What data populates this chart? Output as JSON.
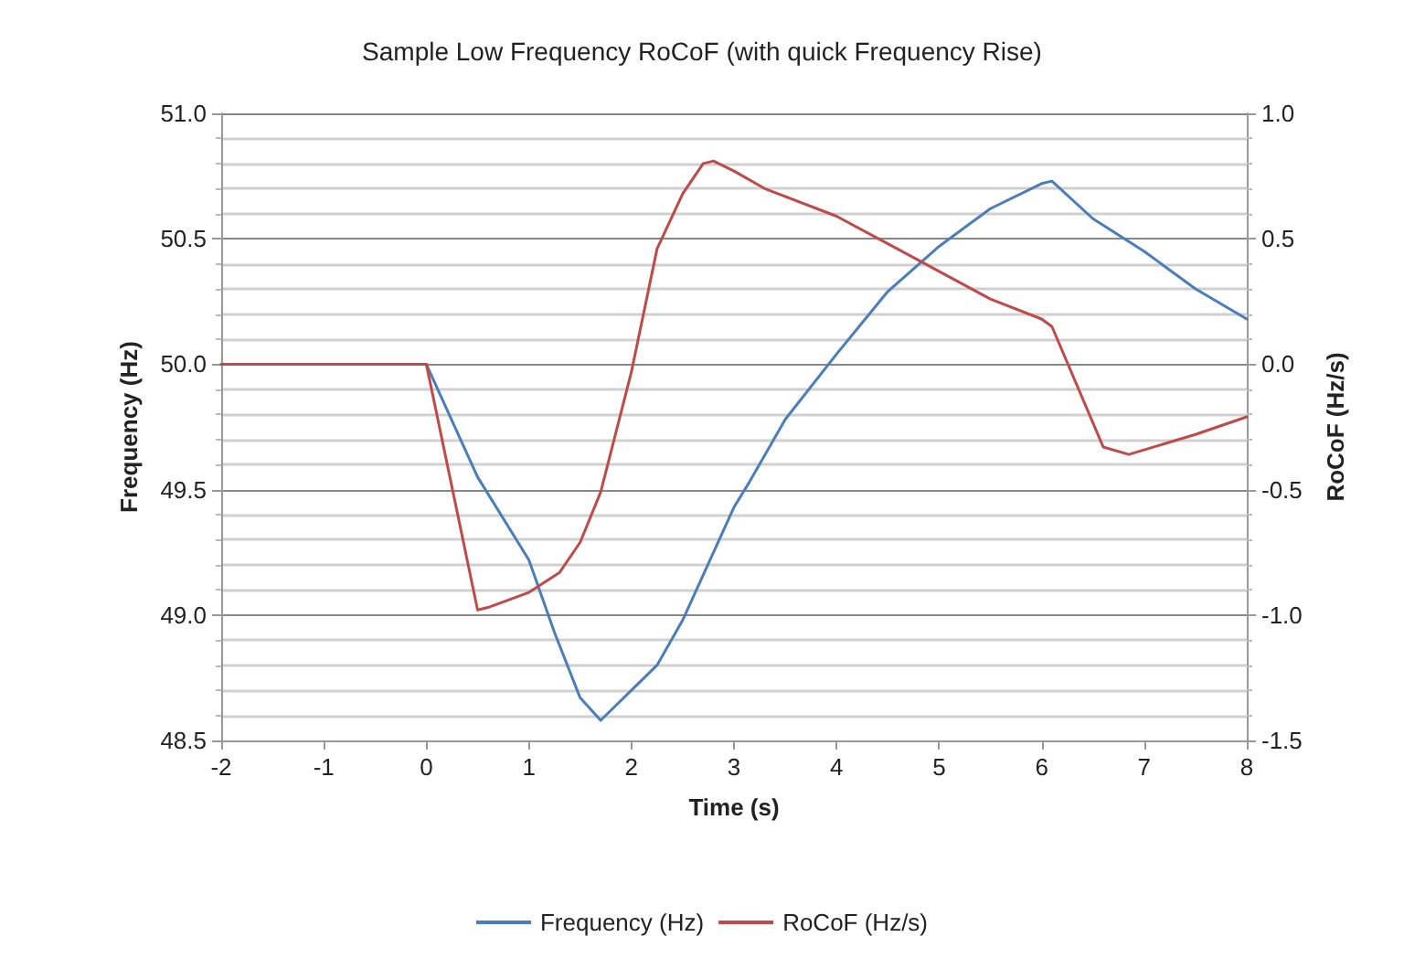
{
  "chart_data": {
    "type": "line",
    "title": "Sample Low Frequency RoCoF (with quick Frequency Rise)",
    "xlabel": "Time (s)",
    "ylabel": "Frequency (Hz)",
    "y2label": "RoCoF (Hz/s)",
    "series": [
      {
        "name": "Frequency (Hz)",
        "color": "#4a7ebb",
        "x": [
          -2,
          0,
          0.5,
          1,
          1.25,
          1.5,
          1.7,
          2,
          2.25,
          2.5,
          3,
          3.15,
          3.5,
          4,
          4.5,
          5,
          5.5,
          6,
          6.1,
          6.5,
          7,
          7.5,
          8
        ],
        "values": [
          50.0,
          50.0,
          49.55,
          49.22,
          48.93,
          48.67,
          48.58,
          48.7,
          48.8,
          48.98,
          49.43,
          49.53,
          49.78,
          50.04,
          50.29,
          50.47,
          50.62,
          50.72,
          50.73,
          50.58,
          50.45,
          50.3,
          50.18
        ]
      },
      {
        "name": "RoCoF (Hz/s)",
        "color": "#be4b48",
        "axis": "y2",
        "x": [
          -2,
          0,
          0.5,
          0.6,
          1,
          1.3,
          1.5,
          1.7,
          2,
          2.25,
          2.5,
          2.7,
          2.8,
          3,
          3.3,
          4,
          4.5,
          5,
          5.5,
          6,
          6.1,
          6.6,
          6.85,
          7.5,
          8
        ],
        "values": [
          0,
          0,
          -0.98,
          -0.97,
          -0.91,
          -0.83,
          -0.71,
          -0.51,
          -0.03,
          0.46,
          0.68,
          0.8,
          0.81,
          0.77,
          0.7,
          0.59,
          0.48,
          0.37,
          0.26,
          0.18,
          0.15,
          -0.33,
          -0.36,
          -0.28,
          -0.21
        ]
      }
    ],
    "xlim": [
      -2,
      8
    ],
    "xticks": [
      -2,
      -1,
      0,
      1,
      2,
      3,
      4,
      5,
      6,
      7,
      8
    ],
    "ylim": [
      48.5,
      51
    ],
    "yticks": [
      {
        "value": 48.5,
        "label": "48.5"
      },
      {
        "value": 49,
        "label": "49.0"
      },
      {
        "value": 49.5,
        "label": "49.5"
      },
      {
        "value": 50,
        "label": "50.0"
      },
      {
        "value": 50.5,
        "label": "50.5"
      },
      {
        "value": 51,
        "label": "51.0"
      }
    ],
    "y2lim": [
      -1.5,
      1
    ],
    "y2ticks": [
      {
        "value": -1.5,
        "label": "-1.5"
      },
      {
        "value": -1,
        "label": "-1.0"
      },
      {
        "value": -0.5,
        "label": "-0.5"
      },
      {
        "value": 0,
        "label": "0.0"
      },
      {
        "value": 0.5,
        "label": "0.5"
      },
      {
        "value": 1,
        "label": "1.0"
      }
    ],
    "grid": "y",
    "legend": "bottom",
    "marker": "none",
    "line_style": "solid"
  }
}
